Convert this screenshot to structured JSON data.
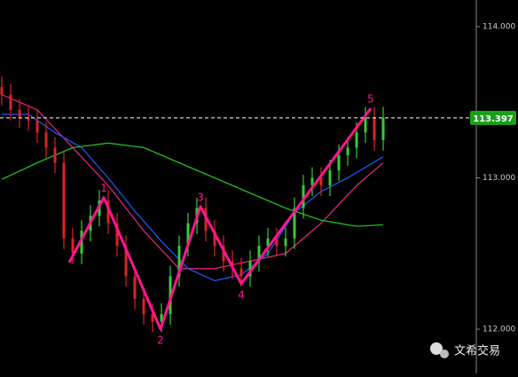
{
  "chart_data": {
    "type": "ohlc",
    "xlim": [
      -0.2,
      53.3
    ],
    "ylim": [
      111.707,
      114.176
    ],
    "yticks": [
      {
        "value": 114,
        "label": "114.000"
      },
      {
        "value": 113,
        "label": "113.000"
      },
      {
        "value": 112,
        "label": "112.000"
      }
    ],
    "up_color": "#33cc33",
    "down_color": "#dd2222",
    "open": [
      113.6,
      113.55,
      113.45,
      113.4,
      113.38,
      113.3,
      113.2,
      113.1,
      112.6,
      112.5,
      112.65,
      112.75,
      112.85,
      112.7,
      112.55,
      112.35,
      112.2,
      112.1,
      112.05,
      112.1,
      112.35,
      112.55,
      112.7,
      112.8,
      112.65,
      112.55,
      112.45,
      112.4,
      112.35,
      112.45,
      112.55,
      112.6,
      112.55,
      112.6,
      112.8,
      112.95,
      113.0,
      112.95,
      113.05,
      113.15,
      113.2,
      113.3,
      113.4,
      113.25
    ],
    "high": [
      113.67,
      113.62,
      113.52,
      113.47,
      113.45,
      113.37,
      113.27,
      113.17,
      112.67,
      112.72,
      112.82,
      112.92,
      112.92,
      112.77,
      112.62,
      112.42,
      112.27,
      112.17,
      112.17,
      112.42,
      112.62,
      112.77,
      112.87,
      112.87,
      112.72,
      112.62,
      112.52,
      112.47,
      112.52,
      112.62,
      112.67,
      112.67,
      112.67,
      112.87,
      113.02,
      113.07,
      113.07,
      113.12,
      113.22,
      113.27,
      113.37,
      113.47,
      113.47,
      113.47
    ],
    "low": [
      113.48,
      113.38,
      113.33,
      113.31,
      113.23,
      113.13,
      113.03,
      112.53,
      112.43,
      112.43,
      112.58,
      112.68,
      112.63,
      112.48,
      112.28,
      112.13,
      112.03,
      111.98,
      111.98,
      112.03,
      112.28,
      112.48,
      112.63,
      112.58,
      112.48,
      112.38,
      112.33,
      112.28,
      112.28,
      112.38,
      112.48,
      112.48,
      112.48,
      112.53,
      112.73,
      112.88,
      112.88,
      112.88,
      112.98,
      113.08,
      113.13,
      113.23,
      113.18,
      113.18
    ],
    "close": [
      113.55,
      113.45,
      113.4,
      113.38,
      113.3,
      113.2,
      113.1,
      112.6,
      112.5,
      112.65,
      112.75,
      112.85,
      112.7,
      112.55,
      112.35,
      112.2,
      112.1,
      112.05,
      112.1,
      112.35,
      112.55,
      112.7,
      112.8,
      112.65,
      112.55,
      112.45,
      112.4,
      112.35,
      112.45,
      112.55,
      112.6,
      112.55,
      112.6,
      112.8,
      112.95,
      113.0,
      112.95,
      113.05,
      113.15,
      113.2,
      113.3,
      113.4,
      113.25,
      113.397
    ],
    "series": [
      {
        "color": "#e0207f",
        "x": [
          0,
          4,
          8,
          12,
          16,
          20,
          24,
          28,
          32,
          36,
          40,
          43
        ],
        "values": [
          113.55,
          113.45,
          113.2,
          112.95,
          112.65,
          112.4,
          112.4,
          112.45,
          112.5,
          112.7,
          112.95,
          113.1
        ]
      },
      {
        "color": "#2255ee",
        "x": [
          0,
          3,
          6,
          9,
          12,
          15,
          18,
          21,
          24,
          27,
          30,
          33,
          36,
          39,
          43
        ],
        "values": [
          113.42,
          113.42,
          113.3,
          113.2,
          113.0,
          112.78,
          112.58,
          112.4,
          112.32,
          112.36,
          112.5,
          112.77,
          112.91,
          113.0,
          113.14
        ]
      },
      {
        "color": "#22bb22",
        "x": [
          0,
          4,
          8,
          12,
          16,
          20,
          24,
          28,
          32,
          36,
          40,
          43
        ],
        "values": [
          112.99,
          113.1,
          113.2,
          113.23,
          113.2,
          113.1,
          113.0,
          112.9,
          112.8,
          112.72,
          112.68,
          112.69
        ]
      }
    ],
    "waves": {
      "color": "#ff1493",
      "x": [
        7.6,
        11.5,
        17.9,
        22.4,
        27,
        41.6
      ],
      "values": [
        112.44,
        112.87,
        112.0,
        112.81,
        112.3,
        113.46
      ],
      "labels": [
        null,
        "1",
        "2",
        "3",
        "4",
        "5"
      ]
    },
    "last_price": 113.397,
    "last_price_color": "#1aa01a"
  },
  "watermark": "文希交易"
}
